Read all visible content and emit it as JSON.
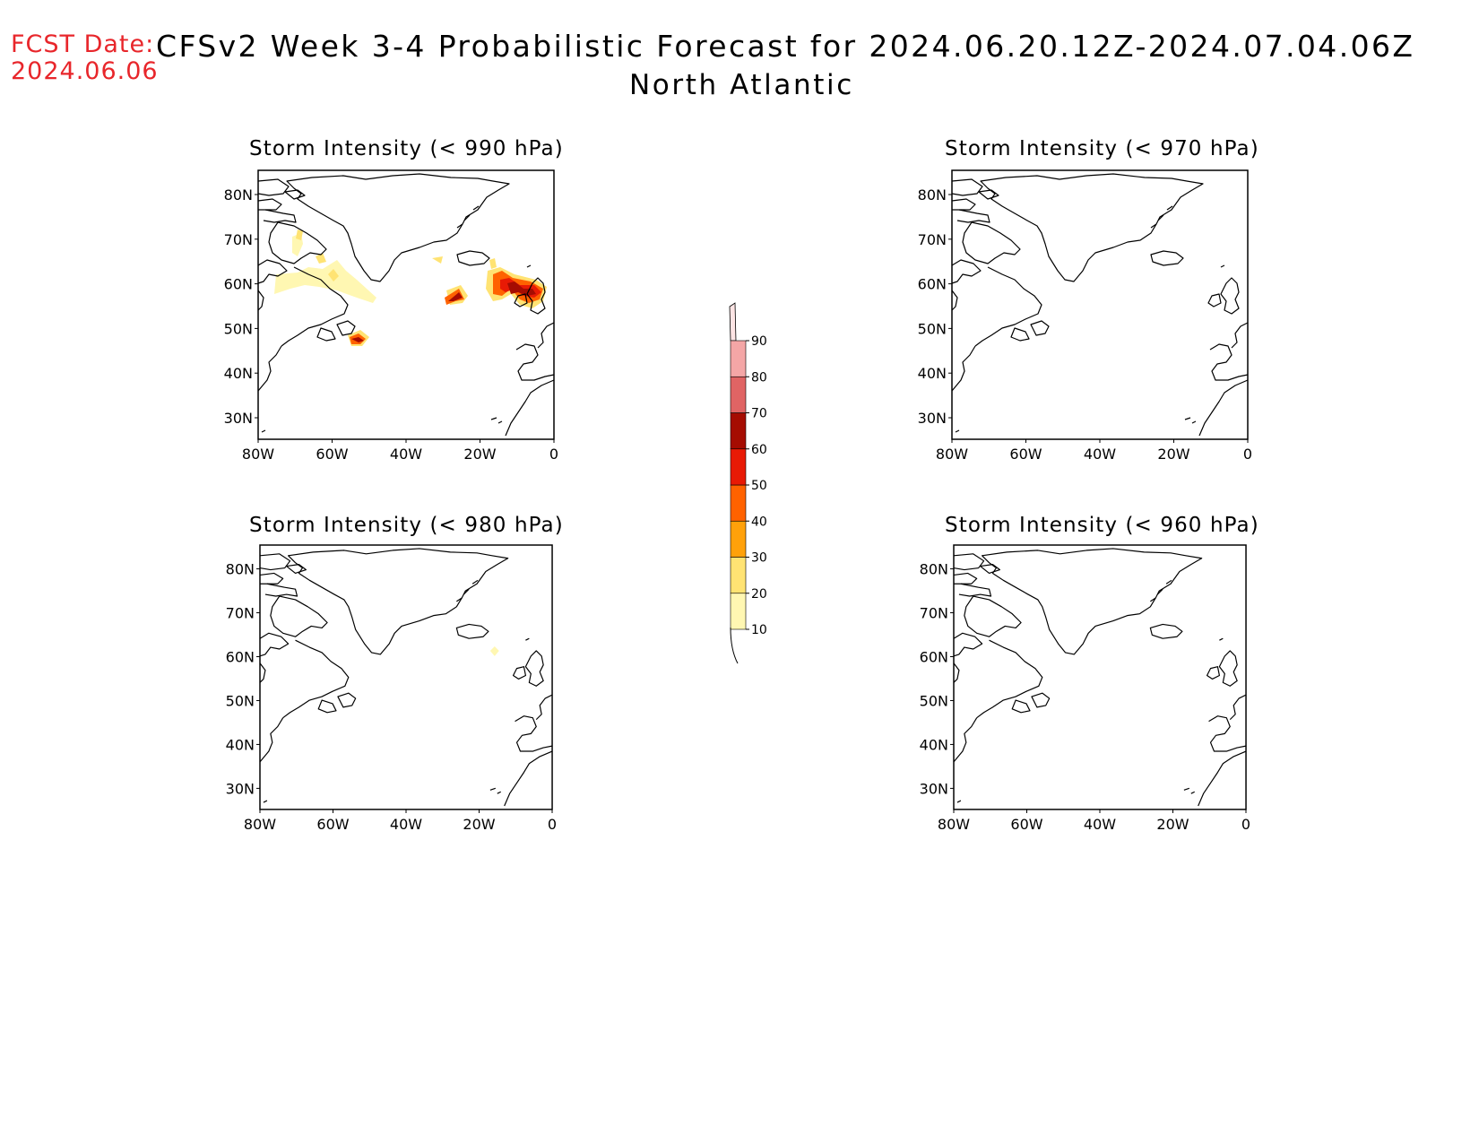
{
  "header": {
    "fcst_label": "FCST Date:",
    "fcst_date": "2024.06.06",
    "title": "CFSv2 Week 3-4 Probabilistic Forecast for 2024.06.20.12Z-2024.07.04.06Z",
    "subtitle": "North Atlantic"
  },
  "colors": {
    "fcst_text": "#e8262b",
    "levels": [
      "#fff7b2",
      "#ffe373",
      "#ffa10a",
      "#ff6200",
      "#e81a05",
      "#a50c02",
      "#e06464",
      "#f4a6a6",
      "#fde4e4"
    ]
  },
  "axes": {
    "lat_ticks": [
      "80N",
      "70N",
      "60N",
      "50N",
      "40N",
      "30N"
    ],
    "lon_ticks": [
      "80W",
      "60W",
      "40W",
      "20W",
      "0"
    ]
  },
  "panels": [
    {
      "title": "Storm Intensity (< 990 hPa)"
    },
    {
      "title": "Storm Intensity (< 970 hPa)"
    },
    {
      "title": "Storm Intensity (< 980 hPa)"
    },
    {
      "title": "Storm Intensity (< 960 hPa)"
    }
  ],
  "colorbar": {
    "labels": [
      "90",
      "80",
      "70",
      "60",
      "50",
      "40",
      "30",
      "20",
      "10"
    ]
  }
}
